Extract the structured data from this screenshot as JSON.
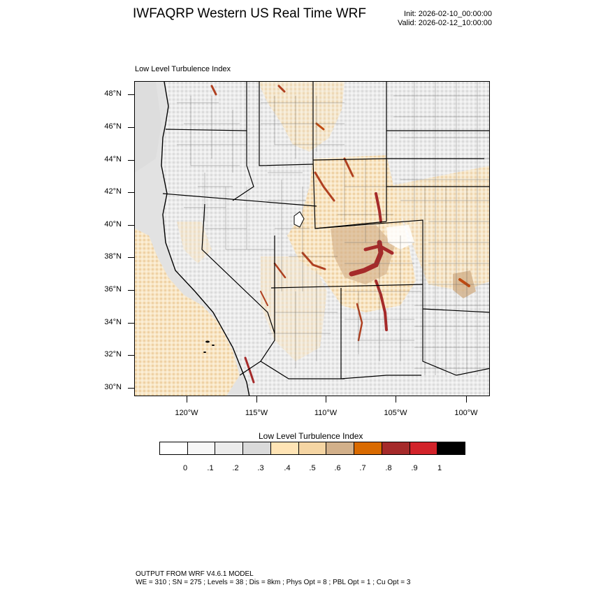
{
  "title": "IWFAQRP Western US Real Time WRF",
  "init": "Init: 2026-02-10_00:00:00",
  "valid": "Valid: 2026-02-12_10:00:00",
  "plot_label": "Low Level Turbulence Index",
  "lat_labels": [
    "48°N",
    "46°N",
    "44°N",
    "42°N",
    "40°N",
    "38°N",
    "36°N",
    "34°N",
    "32°N",
    "30°N"
  ],
  "lon_labels": [
    "120°W",
    "115°W",
    "110°W",
    "105°W",
    "100°W"
  ],
  "colorbar": {
    "title": "Low Level Turbulence Index",
    "colors": [
      "#ffffff",
      "#f7f7f7",
      "#ececec",
      "#dadada",
      "#ffe4b5",
      "#f5d5a3",
      "#d2b08a",
      "#d96a00",
      "#a52a2a",
      "#d2232a",
      "#000000"
    ],
    "labels": [
      "0",
      ".1",
      ".2",
      ".3",
      ".4",
      ".5",
      ".6",
      ".7",
      ".8",
      ".9",
      "1"
    ]
  },
  "footer": {
    "line1": "OUTPUT FROM WRF V4.6.1 MODEL",
    "line2": "WE = 310 ; SN = 275 ; Levels = 38 ; Dis = 8km ; Phys Opt = 8 ; PBL Opt = 1 ; Cu Opt = 3"
  }
}
